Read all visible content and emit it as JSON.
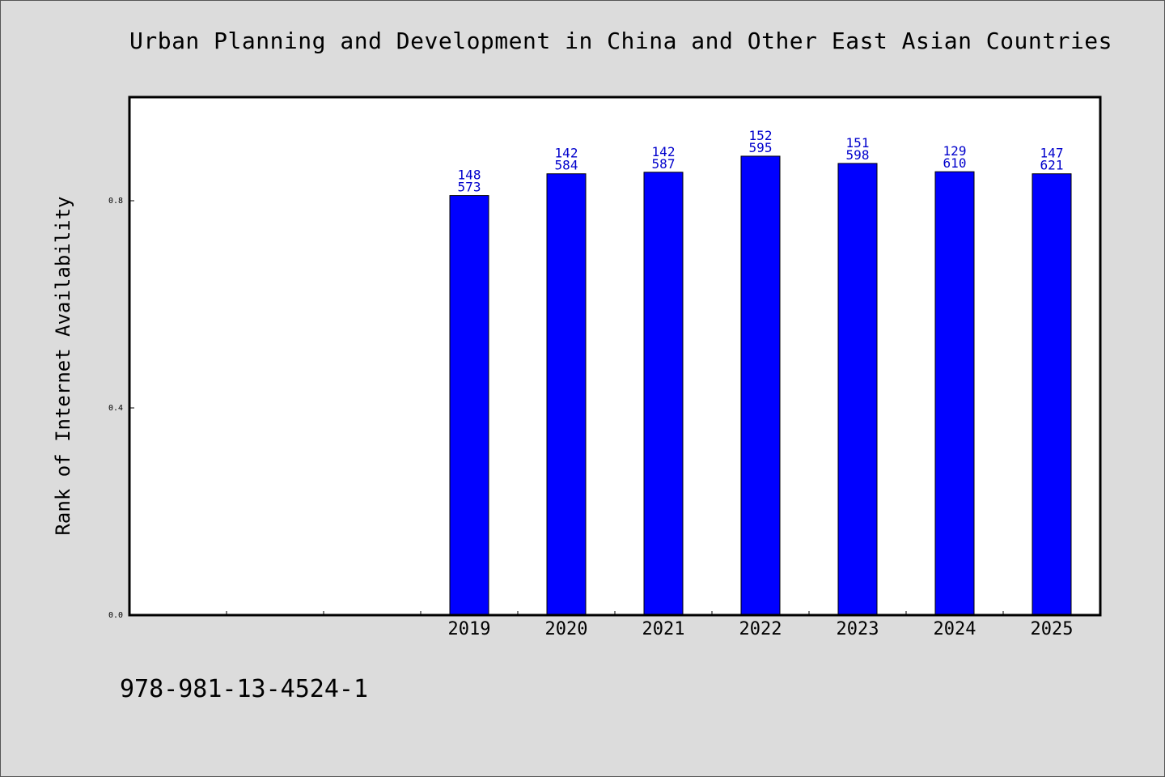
{
  "chart_data": {
    "type": "bar",
    "title": "Urban Planning and Development in China and Other East Asian Countries",
    "xlabel": "",
    "ylabel": "Rank of Internet Availability",
    "ylim": [
      0.0,
      1.0
    ],
    "yticks": [
      {
        "value": 0.0,
        "label": "0.0"
      },
      {
        "value": 0.4,
        "label": "0.4"
      },
      {
        "value": 0.8,
        "label": "0.8"
      }
    ],
    "x_slots": 10,
    "empty_slots_before_data": 3,
    "categories": [
      "2019",
      "2020",
      "2021",
      "2022",
      "2023",
      "2024",
      "2025"
    ],
    "series": [
      {
        "values": [
          0.81,
          0.852,
          0.855,
          0.886,
          0.872,
          0.856,
          0.852
        ],
        "label_top": [
          "148",
          "142",
          "142",
          "152",
          "151",
          "129",
          "147"
        ],
        "label_bottom": [
          "573",
          "584",
          "587",
          "595",
          "598",
          "610",
          "621"
        ],
        "color": "#0000ff"
      }
    ],
    "grid": false,
    "legend": "none",
    "label_color": "#0000cc"
  },
  "footer": {
    "code": "978-981-13-4524-1"
  }
}
